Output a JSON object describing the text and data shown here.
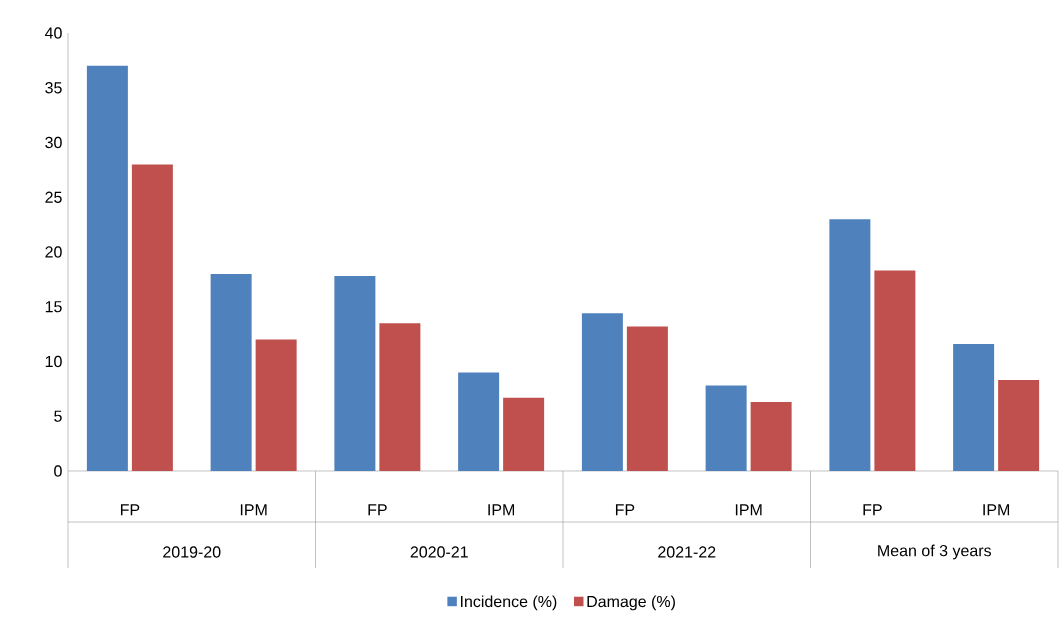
{
  "chart_data": {
    "type": "bar",
    "categories": [
      "FP",
      "IPM",
      "FP",
      "IPM",
      "FP",
      "IPM",
      "FP",
      "IPM"
    ],
    "series": [
      {
        "name": "Incidence (%)",
        "color": "#4f81bd",
        "values": [
          37.0,
          18.0,
          17.8,
          9.0,
          14.4,
          7.8,
          23.0,
          11.6
        ]
      },
      {
        "name": "Damage (%)",
        "color": "#c0504d",
        "values": [
          28.0,
          12.0,
          13.5,
          6.7,
          13.2,
          6.3,
          18.3,
          8.3
        ]
      }
    ],
    "annotations": [
      "2019-20",
      "2020-21",
      "2021-22",
      "Mean of 3 years"
    ],
    "ylim": [
      0,
      40
    ],
    "yticks": [
      0,
      5,
      10,
      15,
      20,
      25,
      30,
      35,
      40
    ],
    "legend": "bottom"
  }
}
